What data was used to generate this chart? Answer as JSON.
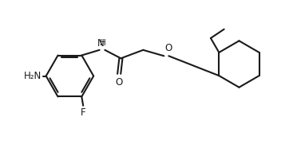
{
  "bg_color": "#ffffff",
  "line_color": "#1a1a1a",
  "line_width": 1.5,
  "font_size": 8.5,
  "fig_width": 3.72,
  "fig_height": 1.91,
  "dpi": 100,
  "xlim": [
    0,
    10
  ],
  "ylim": [
    0,
    5.1
  ]
}
